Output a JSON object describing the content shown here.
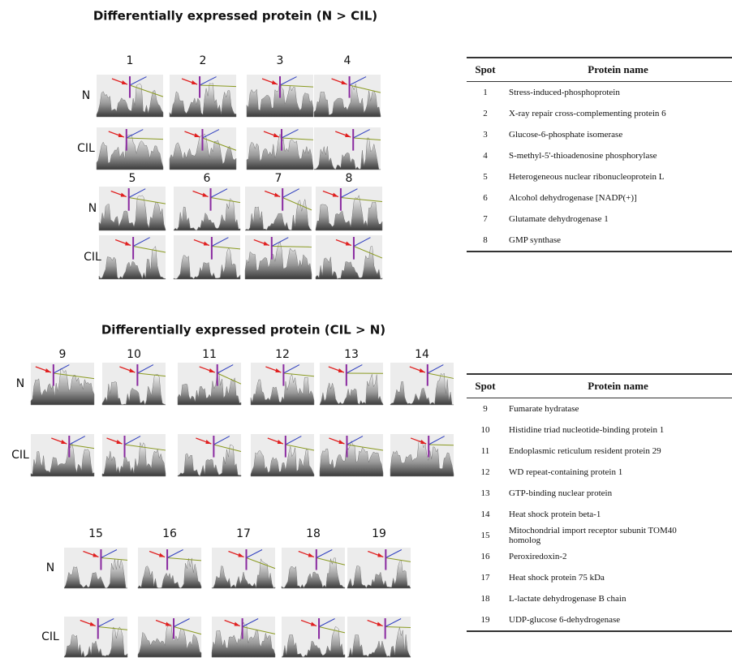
{
  "panel_1": {
    "title": "Differentially expressed protein (N > CIL)",
    "groups": [
      {
        "spots": [
          1,
          2,
          3,
          4
        ],
        "rows": [
          "N",
          "CIL"
        ]
      },
      {
        "spots": [
          5,
          6,
          7,
          8
        ],
        "rows": [
          "N",
          "CIL"
        ]
      }
    ]
  },
  "panel_2": {
    "title": "Differentially expressed protein (CIL > N)",
    "groups": [
      {
        "spots": [
          9,
          10,
          11,
          12,
          13,
          14
        ],
        "rows": [
          "N",
          "CIL"
        ]
      },
      {
        "spots": [
          15,
          16,
          17,
          18,
          19
        ],
        "rows": [
          "N",
          "CIL"
        ]
      }
    ]
  },
  "table_1": {
    "header": {
      "spot": "Spot",
      "name": "Protein name"
    },
    "rows": [
      {
        "spot": 1,
        "name": "Stress-induced-phosphoprotein"
      },
      {
        "spot": 2,
        "name": "X-ray repair cross-complementing protein 6"
      },
      {
        "spot": 3,
        "name": "Glucose-6-phosphate isomerase"
      },
      {
        "spot": 4,
        "name": "S-methyl-5'-thioadenosine phosphorylase"
      },
      {
        "spot": 5,
        "name": "Heterogeneous nuclear ribonucleoprotein L"
      },
      {
        "spot": 6,
        "name": "Alcohol dehydrogenase [NADP(+)]"
      },
      {
        "spot": 7,
        "name": "Glutamate dehydrogenase 1"
      },
      {
        "spot": 8,
        "name": "GMP synthase"
      }
    ]
  },
  "table_2": {
    "header": {
      "spot": "Spot",
      "name": "Protein name"
    },
    "rows": [
      {
        "spot": 9,
        "name": "Fumarate hydratase"
      },
      {
        "spot": 10,
        "name": "Histidine triad nucleotide-binding protein 1"
      },
      {
        "spot": 11,
        "name": "Endoplasmic reticulum resident protein 29"
      },
      {
        "spot": 12,
        "name": "WD repeat-containing protein 1"
      },
      {
        "spot": 13,
        "name": "GTP-binding nuclear protein"
      },
      {
        "spot": 14,
        "name": "Heat shock protein beta-1"
      },
      {
        "spot": 15,
        "name": "Mitochondrial import receptor subunit TOM40 homolog"
      },
      {
        "spot": 16,
        "name": "Peroxiredoxin-2"
      },
      {
        "spot": 17,
        "name": "Heat shock protein 75 kDa"
      },
      {
        "spot": 18,
        "name": "L-lactate dehydrogenase B chain"
      },
      {
        "spot": 19,
        "name": "UDP-glucose 6-dehydrogenase"
      }
    ]
  }
}
